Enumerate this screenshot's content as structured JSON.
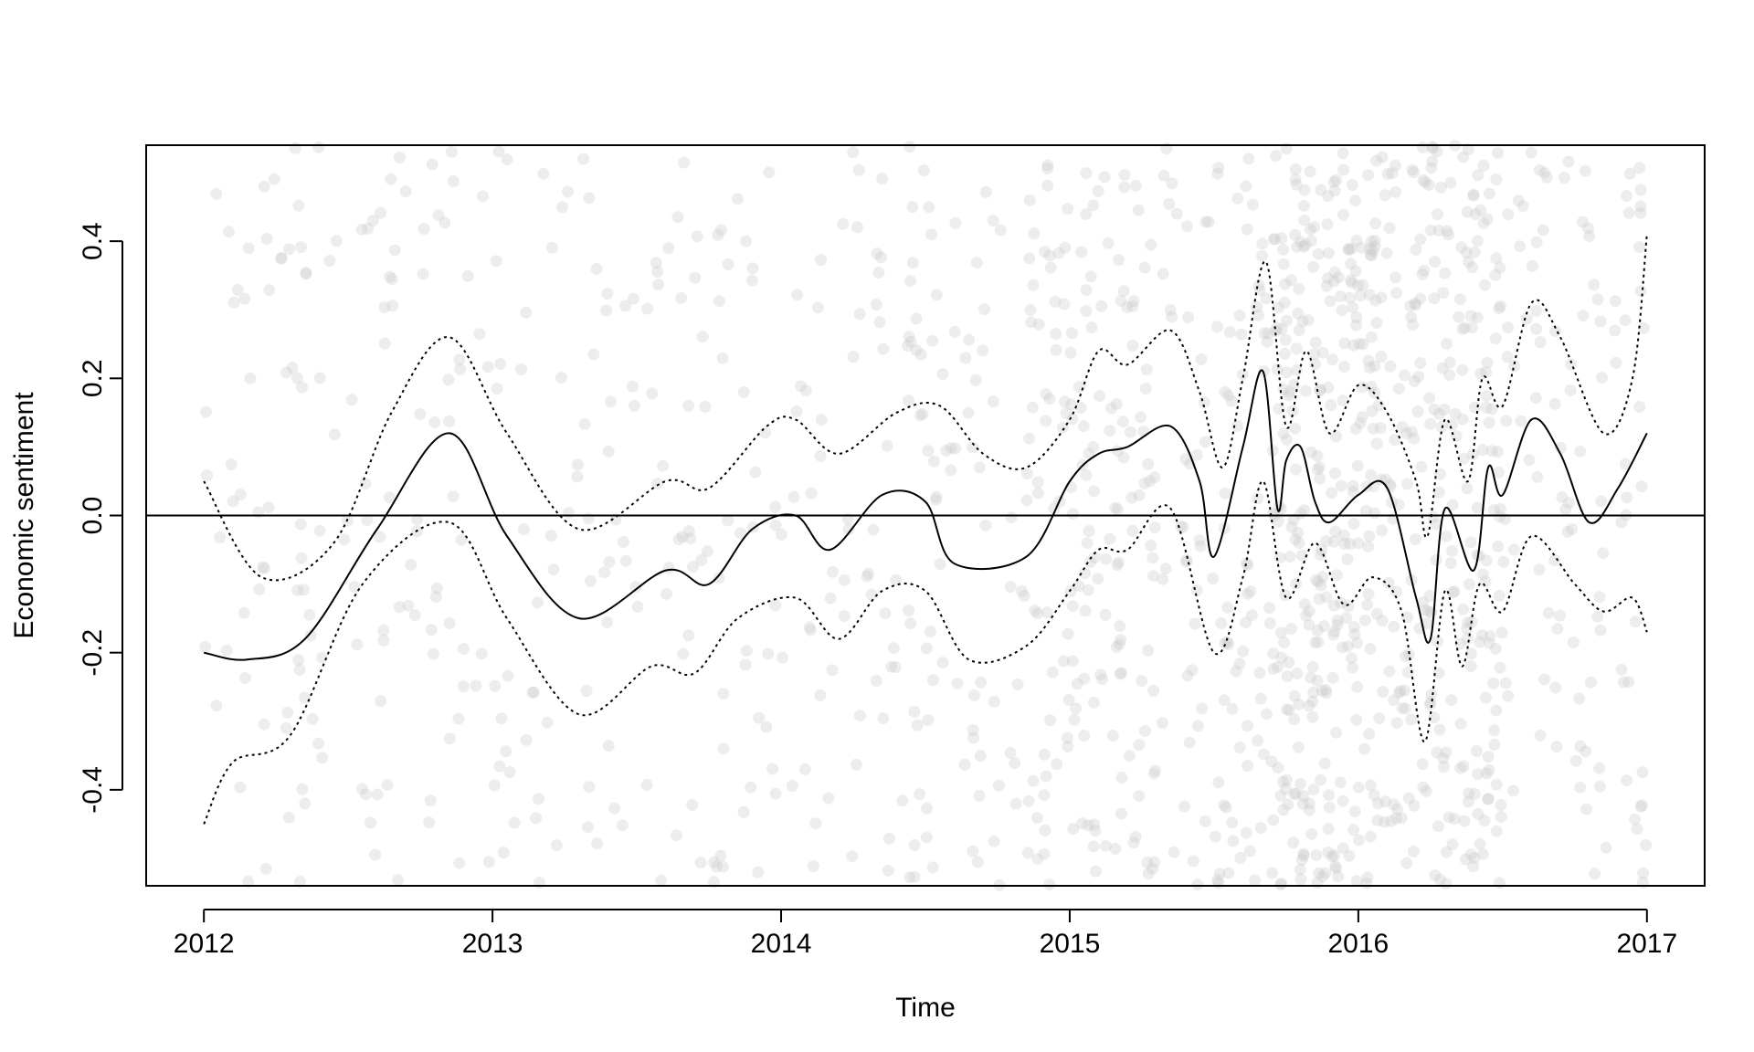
{
  "chart_data": {
    "type": "scatter",
    "title": "",
    "xlabel": "Time",
    "ylabel": "Economic sentiment",
    "xlim": [
      2011.8,
      2017.2
    ],
    "ylim": [
      -0.54,
      0.54
    ],
    "x_ticks": [
      "2012",
      "2013",
      "2014",
      "2015",
      "2016",
      "2017"
    ],
    "y_ticks": [
      "-0.4",
      "-0.2",
      "0.0",
      "0.2",
      "0.4"
    ],
    "y_tick_values": [
      -0.4,
      -0.2,
      0.0,
      0.2,
      0.4
    ],
    "x_tick_values": [
      2012,
      2013,
      2014,
      2015,
      2016,
      2017
    ],
    "reference_line": {
      "y": 0.0
    },
    "grid": false,
    "legend": "none",
    "colors": {
      "points": "#c8c8c8",
      "lines": "#000000"
    },
    "points_description": "dense cloud of semi-transparent grey observations spread across the full y range, densest around late 2015 to mid 2016",
    "point_density": [
      {
        "x_start": 2012.0,
        "x_end": 2012.5,
        "count": 70
      },
      {
        "x_start": 2012.5,
        "x_end": 2013.0,
        "count": 70
      },
      {
        "x_start": 2013.0,
        "x_end": 2013.5,
        "count": 65
      },
      {
        "x_start": 2013.5,
        "x_end": 2014.0,
        "count": 70
      },
      {
        "x_start": 2014.0,
        "x_end": 2014.5,
        "count": 80
      },
      {
        "x_start": 2014.5,
        "x_end": 2014.85,
        "count": 60
      },
      {
        "x_start": 2014.85,
        "x_end": 2015.2,
        "count": 140
      },
      {
        "x_start": 2015.2,
        "x_end": 2015.7,
        "count": 150
      },
      {
        "x_start": 2015.7,
        "x_end": 2016.0,
        "count": 250
      },
      {
        "x_start": 2016.0,
        "x_end": 2016.5,
        "count": 320
      },
      {
        "x_start": 2016.5,
        "x_end": 2017.0,
        "count": 110
      }
    ],
    "series": [
      {
        "style": "solid",
        "x": [
          2012.0,
          2012.15,
          2012.35,
          2012.6,
          2012.85,
          2013.05,
          2013.3,
          2013.6,
          2013.75,
          2013.9,
          2014.05,
          2014.17,
          2014.35,
          2014.5,
          2014.6,
          2014.85,
          2015.0,
          2015.1,
          2015.2,
          2015.35,
          2015.45,
          2015.5,
          2015.6,
          2015.67,
          2015.72,
          2015.75,
          2015.8,
          2015.85,
          2015.9,
          2016.0,
          2016.1,
          2016.2,
          2016.25,
          2016.3,
          2016.4,
          2016.45,
          2016.5,
          2016.6,
          2016.7,
          2016.8,
          2016.9,
          2017.0
        ],
        "y": [
          -0.2,
          -0.21,
          -0.18,
          -0.02,
          0.12,
          -0.03,
          -0.15,
          -0.08,
          -0.1,
          -0.02,
          0.0,
          -0.05,
          0.03,
          0.02,
          -0.07,
          -0.06,
          0.05,
          0.09,
          0.1,
          0.13,
          0.05,
          -0.06,
          0.1,
          0.21,
          0.01,
          0.08,
          0.1,
          0.02,
          -0.01,
          0.03,
          0.04,
          -0.12,
          -0.18,
          0.01,
          -0.08,
          0.07,
          0.03,
          0.14,
          0.09,
          -0.01,
          0.04,
          0.12
        ]
      },
      {
        "style": "dotted",
        "x": [
          2012.0,
          2012.2,
          2012.45,
          2012.65,
          2012.85,
          2013.05,
          2013.3,
          2013.6,
          2013.75,
          2013.95,
          2014.05,
          2014.2,
          2014.4,
          2014.55,
          2014.7,
          2014.85,
          2015.0,
          2015.1,
          2015.2,
          2015.35,
          2015.45,
          2015.53,
          2015.6,
          2015.68,
          2015.75,
          2015.82,
          2015.9,
          2016.0,
          2016.1,
          2016.2,
          2016.24,
          2016.3,
          2016.38,
          2016.43,
          2016.5,
          2016.6,
          2016.7,
          2016.85,
          2016.95,
          2017.0
        ],
        "y": [
          0.05,
          -0.09,
          -0.04,
          0.15,
          0.26,
          0.12,
          -0.02,
          0.05,
          0.04,
          0.13,
          0.14,
          0.09,
          0.15,
          0.16,
          0.09,
          0.07,
          0.14,
          0.24,
          0.22,
          0.27,
          0.18,
          0.07,
          0.2,
          0.37,
          0.13,
          0.24,
          0.12,
          0.19,
          0.15,
          0.05,
          -0.03,
          0.14,
          0.05,
          0.2,
          0.16,
          0.31,
          0.26,
          0.12,
          0.2,
          0.41
        ]
      },
      {
        "style": "dotted",
        "x": [
          2012.0,
          2012.1,
          2012.3,
          2012.55,
          2012.85,
          2013.05,
          2013.3,
          2013.55,
          2013.7,
          2013.85,
          2014.05,
          2014.2,
          2014.35,
          2014.5,
          2014.65,
          2014.85,
          2015.0,
          2015.1,
          2015.2,
          2015.35,
          2015.5,
          2015.6,
          2015.67,
          2015.75,
          2015.85,
          2015.95,
          2016.05,
          2016.15,
          2016.23,
          2016.3,
          2016.36,
          2016.42,
          2016.5,
          2016.6,
          2016.75,
          2016.85,
          2016.95,
          2017.0
        ],
        "y": [
          -0.45,
          -0.36,
          -0.32,
          -0.1,
          -0.01,
          -0.15,
          -0.29,
          -0.22,
          -0.23,
          -0.15,
          -0.12,
          -0.18,
          -0.11,
          -0.11,
          -0.21,
          -0.19,
          -0.11,
          -0.05,
          -0.05,
          0.01,
          -0.2,
          -0.09,
          0.05,
          -0.12,
          -0.04,
          -0.13,
          -0.09,
          -0.14,
          -0.33,
          -0.11,
          -0.22,
          -0.1,
          -0.14,
          -0.03,
          -0.1,
          -0.14,
          -0.12,
          -0.17
        ]
      }
    ]
  }
}
